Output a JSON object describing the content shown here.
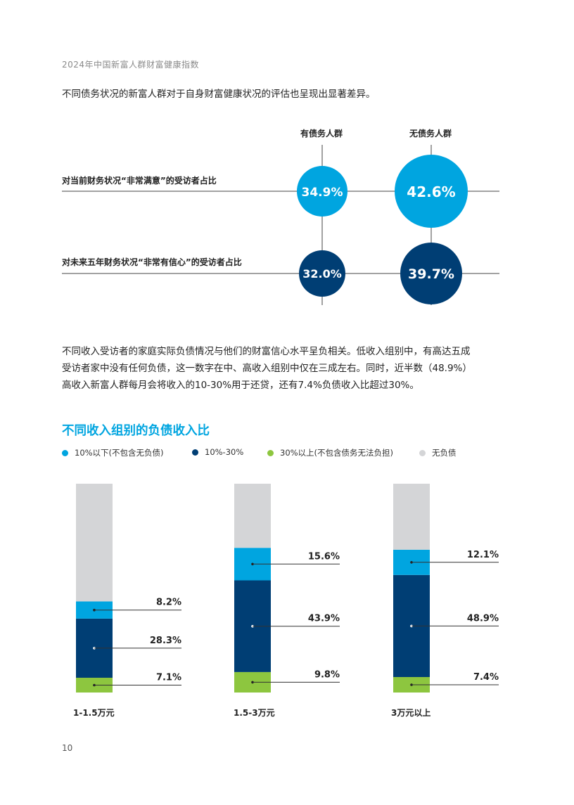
{
  "header": {
    "running_title": "2024年中国新富人群财富健康指数"
  },
  "intro": {
    "text": "不同债务状况的新富人群对于自身财富健康状况的评估也呈现出显著差异。"
  },
  "matrix": {
    "columns": [
      "有债务人群",
      "无债务人群"
    ],
    "rows": [
      {
        "label": "对当前财务状况“非常满意”的受访者占比",
        "values": [
          "34.9%",
          "42.6%"
        ],
        "color": "#00a5e0"
      },
      {
        "label": "对未来五年财务状况“非常有信心”的受访者占比",
        "values": [
          "32.0%",
          "39.7%"
        ],
        "color": "#003e74"
      }
    ]
  },
  "paragraph": {
    "lines": [
      "不同收入受访者的家庭实际负债情况与他们的财富信心水平呈负相关。低收入组别中，有高达五成",
      "受访者家中没有任何负债，这一数字在中、高收入组别中仅在三成左右。同时，近半数（48.9%）",
      "高收入新富人群每月会将收入的10-30%用于还贷，还有7.4%负债收入比超过30%。"
    ]
  },
  "chart_section": {
    "title": "不同收入组别的负债收入比",
    "legend": [
      {
        "label": "10%以下(不包含无负债)",
        "color": "#00a5e0"
      },
      {
        "label": "10%-30%",
        "color": "#003e74"
      },
      {
        "label": "30%以上(不包含债务无法负担)",
        "color": "#8dc63f"
      },
      {
        "label": "无负债",
        "color": "#d4d5d7"
      }
    ]
  },
  "chart_data": {
    "type": "bar",
    "stacked": true,
    "categories": [
      "1-1.5万元",
      "1.5-3万元",
      "3万元以上"
    ],
    "series": [
      {
        "name": "30%以上(不包含债务无法负担)",
        "values": [
          7.1,
          9.8,
          7.4
        ],
        "labels": [
          "7.1%",
          "9.8%",
          "7.4%"
        ],
        "color": "#8dc63f"
      },
      {
        "name": "10%-30%",
        "values": [
          28.3,
          43.9,
          48.9
        ],
        "labels": [
          "28.3%",
          "43.9%",
          "48.9%"
        ],
        "color": "#003e74"
      },
      {
        "name": "10%以下(不包含无负债)",
        "values": [
          8.2,
          15.6,
          12.1
        ],
        "labels": [
          "8.2%",
          "15.6%",
          "12.1%"
        ],
        "color": "#00a5e0"
      },
      {
        "name": "无负债",
        "values": [
          56.4,
          30.7,
          31.6
        ],
        "color": "#d4d5d7"
      }
    ],
    "ylim": [
      0,
      100
    ]
  },
  "footer": {
    "page_number": "10"
  }
}
